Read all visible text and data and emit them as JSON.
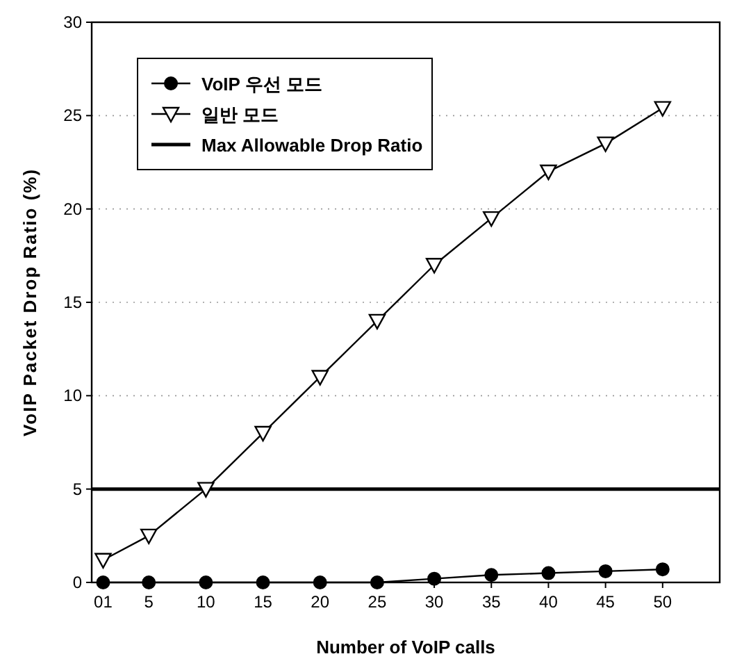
{
  "chart_data": {
    "type": "line",
    "xlabel": "Number of VoIP calls",
    "ylabel": "VoIP Packet Drop Ratio (%)",
    "x": [
      1,
      5,
      10,
      15,
      20,
      25,
      30,
      35,
      40,
      45,
      50
    ],
    "series": [
      {
        "name": "VoIP 우선 모드",
        "color": "#000000",
        "marker": "circle",
        "values": [
          0,
          0,
          0,
          0,
          0,
          0,
          0.2,
          0.4,
          0.5,
          0.6,
          0.7
        ]
      },
      {
        "name": "일반 모드",
        "color": "#000000",
        "marker": "triangle",
        "values": [
          1.2,
          2.5,
          5,
          8,
          11,
          14,
          17,
          19.5,
          22,
          23.5,
          25.4
        ]
      }
    ],
    "ref_lines": [
      {
        "axis": "y",
        "value": 5,
        "label": "Max Allowable Drop Ratio",
        "color": "#000000",
        "line_style": "solid"
      }
    ],
    "xlim": [
      0,
      55
    ],
    "ylim": [
      0,
      30
    ],
    "xticks": [
      {
        "value": 1,
        "label": "01"
      },
      5,
      10,
      15,
      20,
      25,
      30,
      35,
      40,
      45,
      50
    ],
    "yticks": [
      0,
      5,
      10,
      15,
      20,
      25,
      30
    ],
    "grid": "y",
    "legend": "top left"
  }
}
